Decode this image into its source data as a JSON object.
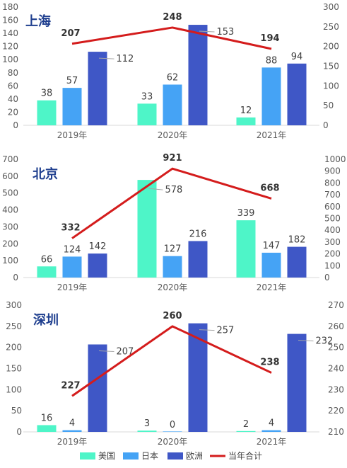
{
  "chart_data": [
    {
      "type": "bar",
      "title": "上海",
      "categories": [
        "2019年",
        "2020年",
        "2021年"
      ],
      "series": [
        {
          "name": "美国",
          "values": [
            38,
            33,
            12
          ]
        },
        {
          "name": "日本",
          "values": [
            57,
            62,
            88
          ]
        },
        {
          "name": "欧洲",
          "values": [
            112,
            153,
            94
          ]
        }
      ],
      "line": {
        "name": "当年合计",
        "values": [
          207,
          248,
          194
        ]
      },
      "ylim": [
        0,
        180
      ],
      "yticks": [
        0,
        20,
        40,
        60,
        80,
        100,
        120,
        140,
        160,
        180
      ],
      "y2lim": [
        0,
        300
      ],
      "y2ticks": [
        0,
        50,
        100,
        150,
        200,
        250,
        300
      ]
    },
    {
      "type": "bar",
      "title": "北京",
      "categories": [
        "2019年",
        "2020年",
        "2021年"
      ],
      "series": [
        {
          "name": "美国",
          "values": [
            66,
            578,
            339
          ]
        },
        {
          "name": "日本",
          "values": [
            124,
            127,
            147
          ]
        },
        {
          "name": "欧洲",
          "values": [
            142,
            216,
            182
          ]
        }
      ],
      "line": {
        "name": "当年合计",
        "values": [
          332,
          921,
          668
        ]
      },
      "ylim": [
        0,
        700
      ],
      "yticks": [
        0,
        100,
        200,
        300,
        400,
        500,
        600,
        700
      ],
      "y2lim": [
        0,
        1000
      ],
      "y2ticks": [
        0,
        100,
        200,
        300,
        400,
        500,
        600,
        700,
        800,
        900,
        1000
      ]
    },
    {
      "type": "bar",
      "title": "深圳",
      "categories": [
        "2019年",
        "2020年",
        "2021年"
      ],
      "series": [
        {
          "name": "美国",
          "values": [
            16,
            3,
            2
          ]
        },
        {
          "name": "日本",
          "values": [
            4,
            0,
            4
          ]
        },
        {
          "name": "欧洲",
          "values": [
            207,
            257,
            232
          ]
        }
      ],
      "line": {
        "name": "当年合计",
        "values": [
          227,
          260,
          238
        ]
      },
      "ylim": [
        0,
        300
      ],
      "yticks": [
        0,
        50,
        100,
        150,
        200,
        250,
        300
      ],
      "y2lim": [
        210,
        270
      ],
      "y2ticks": [
        210,
        220,
        230,
        240,
        250,
        260,
        270
      ]
    }
  ],
  "legend": {
    "position": "bottom",
    "items": [
      {
        "label": "美国",
        "color": "#4ef5c8",
        "kind": "bar"
      },
      {
        "label": "日本",
        "color": "#45a3f5",
        "kind": "bar"
      },
      {
        "label": "欧洲",
        "color": "#3f57c6",
        "kind": "bar"
      },
      {
        "label": "当年合计",
        "color": "#d41c1c",
        "kind": "line"
      }
    ]
  },
  "colors": {
    "us": "#4ef5c8",
    "jp": "#45a3f5",
    "eu": "#3f57c6",
    "total": "#d41c1c",
    "title": "#1f3f8f"
  }
}
